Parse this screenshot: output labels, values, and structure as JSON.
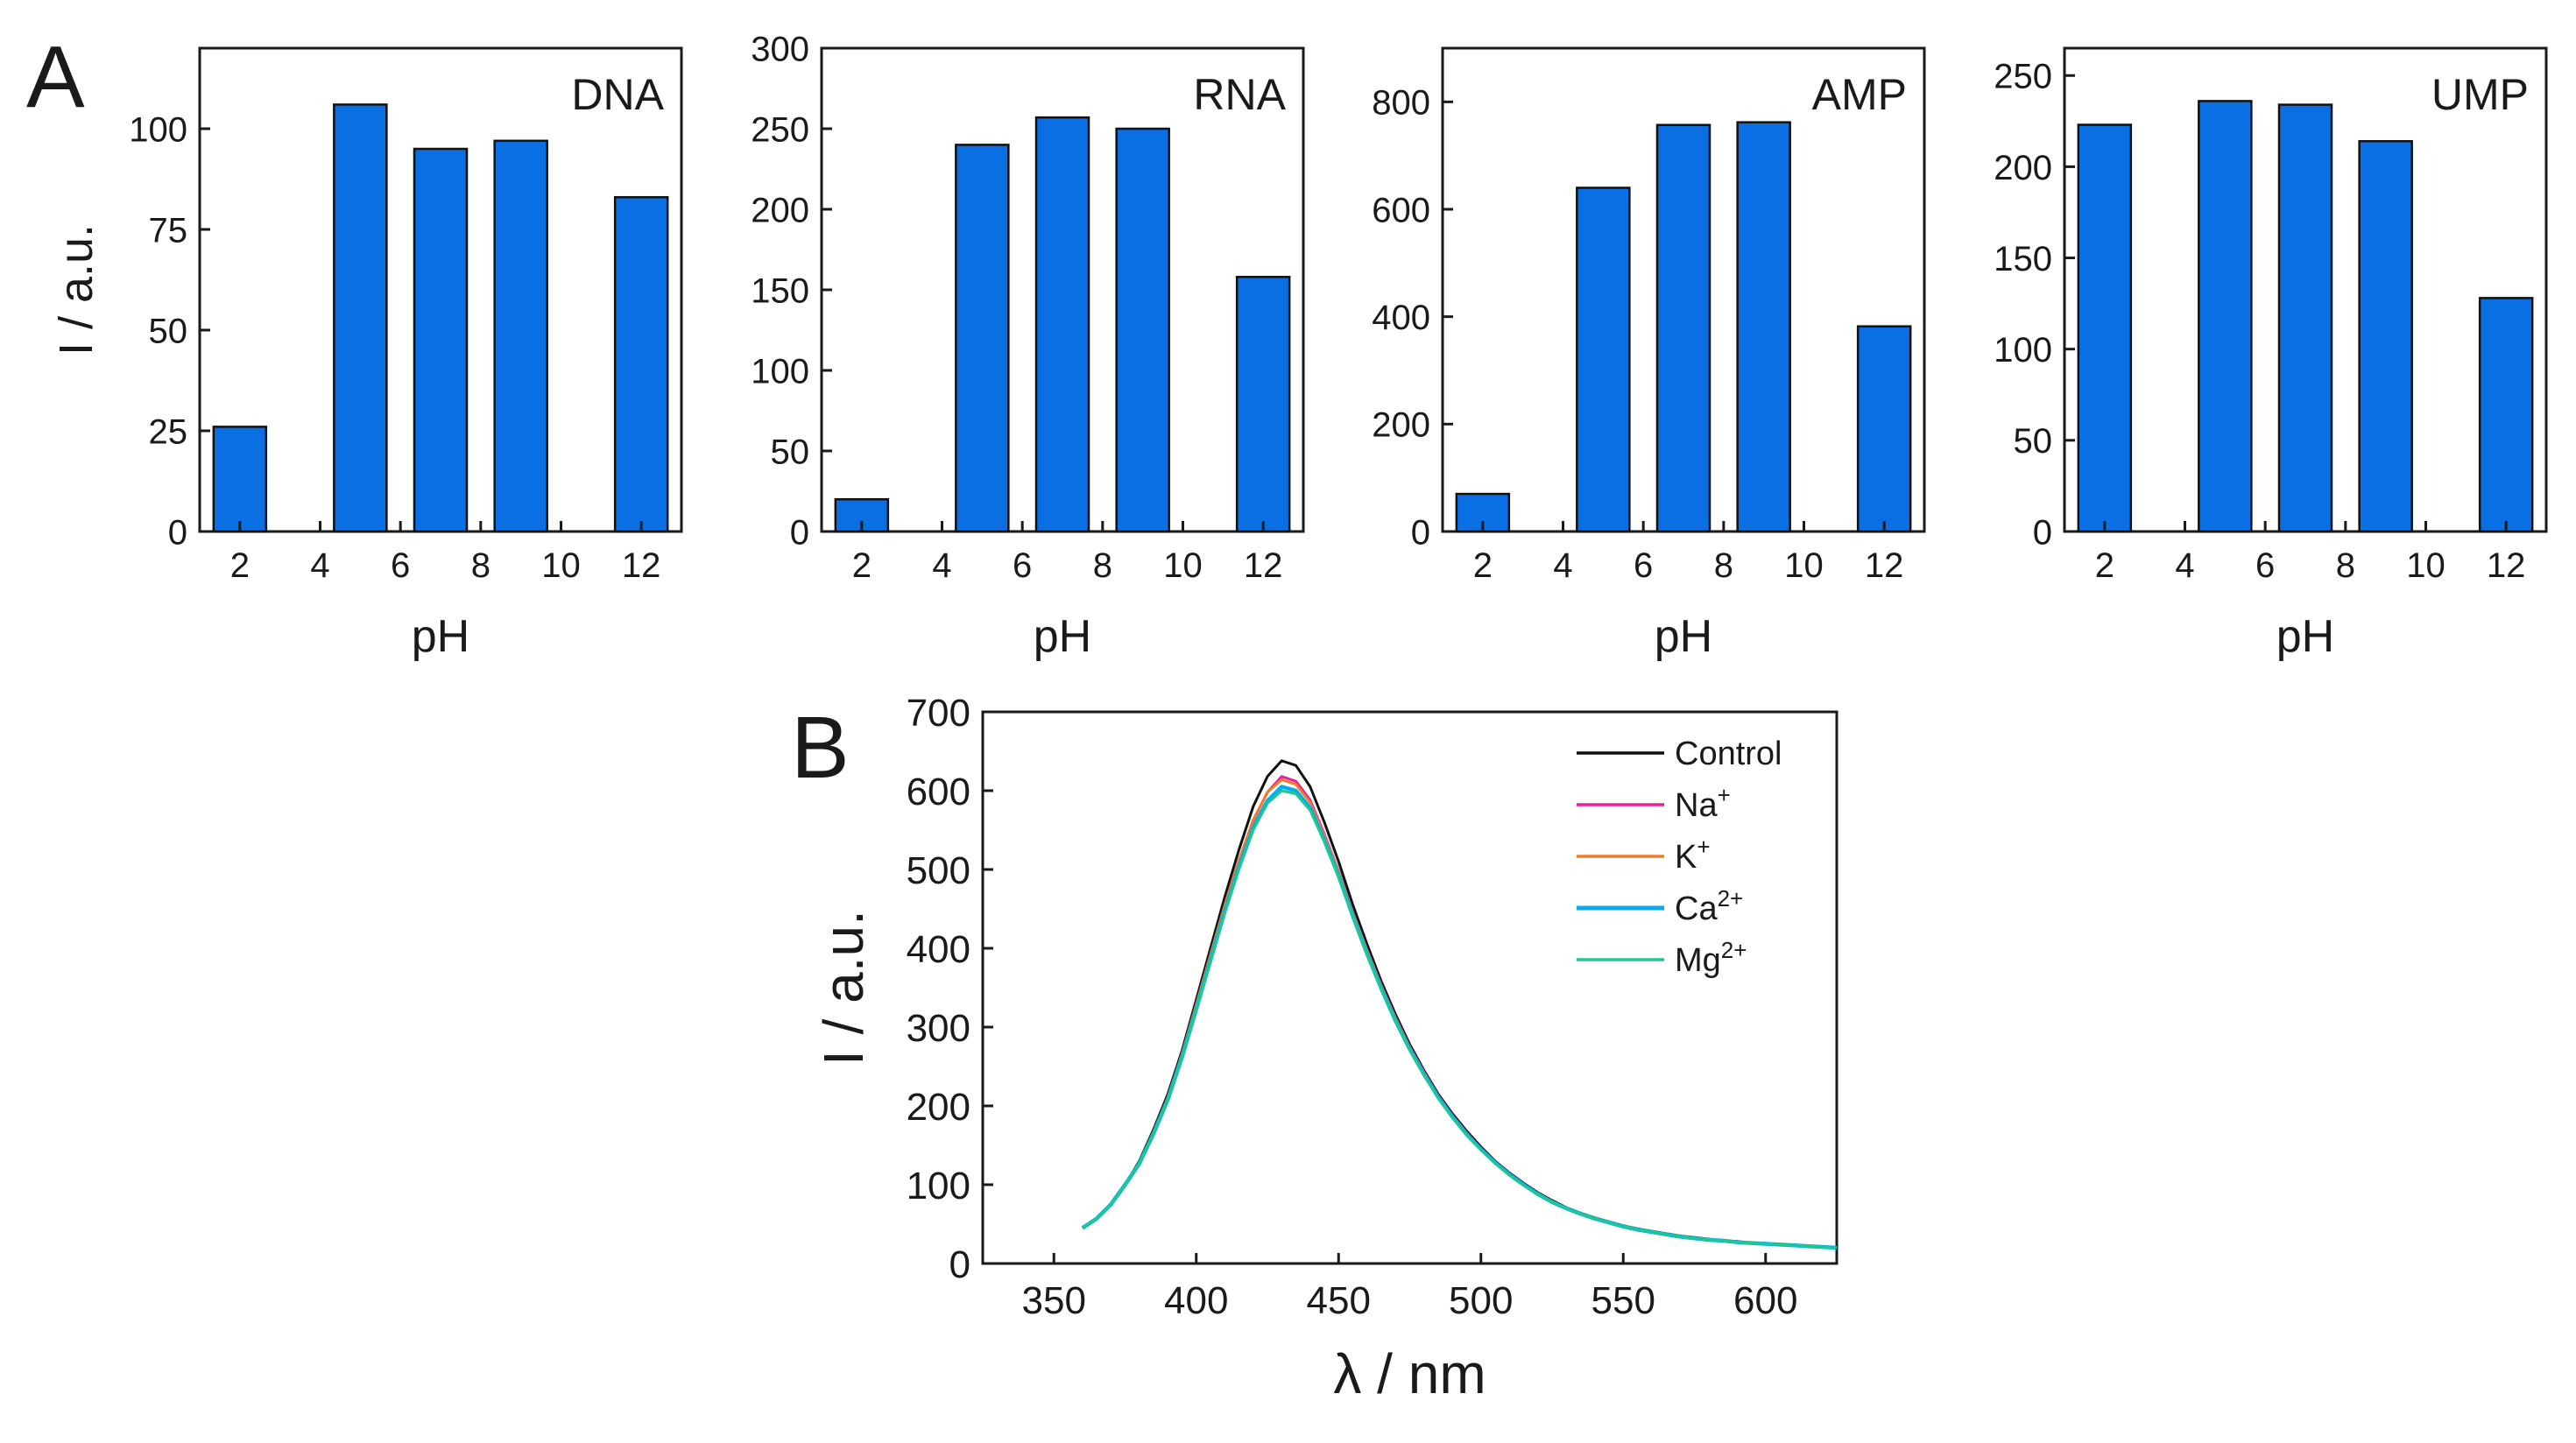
{
  "colors": {
    "bar_fill": "#0a6fe2",
    "axis": "#1a1a1a",
    "control": "#111111",
    "na": "#e8219a",
    "k": "#f07c28",
    "ca": "#08aaf2",
    "mg": "#1ec98c"
  },
  "panel_labels": {
    "a": "A",
    "b": "B"
  },
  "chart_data": [
    {
      "type": "bar",
      "panel": "A",
      "title": "DNA",
      "xlabel": "pH",
      "ylabel": "I / a.u.",
      "xlim": [
        1,
        13
      ],
      "xticks": [
        2,
        4,
        6,
        8,
        10,
        12
      ],
      "ylim": [
        0,
        120
      ],
      "yticks": [
        0,
        25,
        50,
        75,
        100
      ],
      "x": [
        2,
        5,
        7,
        9,
        12
      ],
      "values": [
        26,
        106,
        95,
        97,
        83
      ]
    },
    {
      "type": "bar",
      "panel": "A",
      "title": "RNA",
      "xlabel": "pH",
      "ylabel": "",
      "xlim": [
        1,
        13
      ],
      "xticks": [
        2,
        4,
        6,
        8,
        10,
        12
      ],
      "ylim": [
        0,
        300
      ],
      "yticks": [
        0,
        50,
        100,
        150,
        200,
        250,
        300
      ],
      "x": [
        2,
        5,
        7,
        9,
        12
      ],
      "values": [
        20,
        240,
        257,
        250,
        158
      ]
    },
    {
      "type": "bar",
      "panel": "A",
      "title": "AMP",
      "xlabel": "pH",
      "ylabel": "",
      "xlim": [
        1,
        13
      ],
      "xticks": [
        2,
        4,
        6,
        8,
        10,
        12
      ],
      "ylim": [
        0,
        900
      ],
      "yticks": [
        0,
        200,
        400,
        600,
        800
      ],
      "x": [
        2,
        5,
        7,
        9,
        12
      ],
      "values": [
        70,
        640,
        757,
        762,
        382
      ]
    },
    {
      "type": "bar",
      "panel": "A",
      "title": "UMP",
      "xlabel": "pH",
      "ylabel": "",
      "xlim": [
        1,
        13
      ],
      "xticks": [
        2,
        4,
        6,
        8,
        10,
        12
      ],
      "ylim": [
        0,
        265
      ],
      "yticks": [
        0,
        50,
        100,
        150,
        200,
        250
      ],
      "x": [
        2,
        5,
        7,
        9,
        12
      ],
      "values": [
        223,
        236,
        234,
        214,
        128
      ]
    },
    {
      "type": "line",
      "panel": "B",
      "title": "",
      "xlabel": "λ / nm",
      "ylabel": "I / a.u.",
      "xlim": [
        325,
        625
      ],
      "xticks": [
        350,
        400,
        450,
        500,
        550,
        600
      ],
      "ylim": [
        0,
        700
      ],
      "yticks": [
        0,
        100,
        200,
        300,
        400,
        500,
        600,
        700
      ],
      "x": [
        360,
        365,
        370,
        375,
        380,
        385,
        390,
        395,
        400,
        405,
        410,
        415,
        420,
        425,
        430,
        435,
        440,
        445,
        450,
        455,
        460,
        465,
        470,
        475,
        480,
        485,
        490,
        495,
        500,
        505,
        510,
        515,
        520,
        525,
        530,
        535,
        540,
        545,
        550,
        555,
        560,
        565,
        570,
        575,
        580,
        585,
        590,
        595,
        600,
        605,
        610,
        615,
        620,
        625
      ],
      "series": [
        {
          "name": "Control",
          "key": "control",
          "values": [
            45,
            57,
            75,
            100,
            130,
            170,
            215,
            270,
            335,
            400,
            465,
            525,
            580,
            618,
            638,
            632,
            605,
            560,
            510,
            455,
            405,
            358,
            316,
            278,
            245,
            215,
            190,
            168,
            148,
            130,
            115,
            102,
            90,
            80,
            71,
            64,
            58,
            53,
            48,
            44,
            41,
            38,
            35,
            33,
            31,
            29,
            28,
            26,
            25,
            24,
            23,
            22,
            21,
            20
          ]
        },
        {
          "name": "Na",
          "sup": "+",
          "key": "na",
          "values": [
            45,
            57,
            75,
            100,
            128,
            167,
            211,
            265,
            328,
            390,
            453,
            510,
            562,
            598,
            618,
            612,
            588,
            545,
            498,
            446,
            398,
            353,
            312,
            275,
            243,
            213,
            188,
            166,
            146,
            129,
            114,
            101,
            89,
            79,
            70,
            63,
            57,
            52,
            47,
            43,
            40,
            37,
            34,
            32,
            30,
            29,
            27,
            26,
            25,
            24,
            23,
            22,
            21,
            20
          ]
        },
        {
          "name": "K",
          "sup": "+",
          "key": "k",
          "values": [
            45,
            57,
            75,
            100,
            128,
            167,
            211,
            266,
            329,
            392,
            455,
            512,
            563,
            598,
            614,
            608,
            585,
            543,
            497,
            445,
            397,
            352,
            311,
            274,
            242,
            212,
            187,
            165,
            145,
            128,
            113,
            100,
            88,
            78,
            70,
            63,
            57,
            52,
            47,
            43,
            40,
            37,
            34,
            32,
            30,
            29,
            27,
            26,
            25,
            24,
            23,
            22,
            21,
            20
          ]
        },
        {
          "name": "Ca",
          "sup": "2+",
          "key": "ca",
          "values": [
            45,
            57,
            75,
            100,
            127,
            165,
            208,
            262,
            323,
            385,
            447,
            503,
            553,
            587,
            605,
            600,
            578,
            537,
            492,
            441,
            393,
            349,
            308,
            272,
            240,
            211,
            186,
            164,
            145,
            128,
            113,
            100,
            88,
            78,
            70,
            63,
            57,
            52,
            47,
            43,
            40,
            37,
            34,
            32,
            30,
            29,
            27,
            26,
            25,
            24,
            23,
            22,
            21,
            20
          ]
        },
        {
          "name": "Mg",
          "sup": "2+",
          "key": "mg",
          "values": [
            45,
            57,
            75,
            100,
            127,
            165,
            208,
            261,
            322,
            383,
            445,
            500,
            550,
            584,
            600,
            596,
            575,
            535,
            490,
            440,
            392,
            348,
            308,
            271,
            239,
            210,
            185,
            163,
            144,
            127,
            112,
            99,
            88,
            78,
            70,
            63,
            57,
            52,
            47,
            43,
            40,
            37,
            34,
            32,
            30,
            29,
            27,
            26,
            25,
            24,
            23,
            22,
            21,
            20
          ]
        }
      ]
    }
  ]
}
